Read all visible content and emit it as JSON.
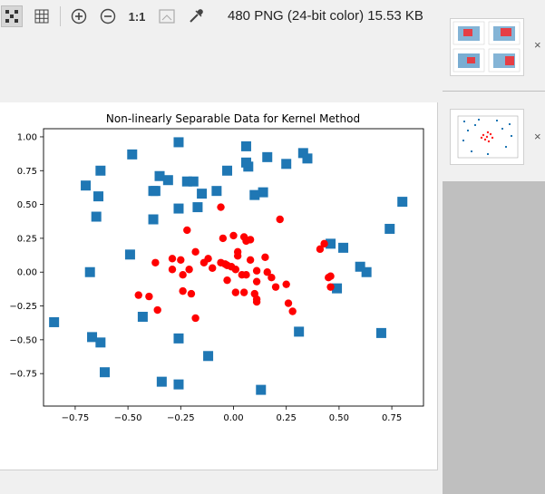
{
  "toolbar": {
    "image_info": "480 PNG (24-bit color) 15.53 KB",
    "zoom_label": "1:1"
  },
  "sidebar": {
    "close_glyph": "×"
  },
  "chart_data": {
    "type": "scatter",
    "title": "Non-linearly Separable Data for Kernel Method",
    "xlabel": "",
    "ylabel": "",
    "xlim": [
      -0.9,
      0.9
    ],
    "ylim": [
      -0.99,
      1.06
    ],
    "xticks": [
      -0.75,
      -0.5,
      -0.25,
      0.0,
      0.25,
      0.5,
      0.75
    ],
    "xtick_labels": [
      "−0.75",
      "−0.50",
      "−0.25",
      "0.00",
      "0.25",
      "0.50",
      "0.75"
    ],
    "yticks": [
      -0.75,
      -0.5,
      -0.25,
      0.0,
      0.25,
      0.5,
      0.75,
      1.0
    ],
    "ytick_labels": [
      "−0.75",
      "−0.50",
      "−0.25",
      "0.00",
      "0.25",
      "0.50",
      "0.75",
      "1.00"
    ],
    "grid": false,
    "series": [
      {
        "marker": "square",
        "color": "#1f77b4",
        "points": [
          [
            -0.26,
            0.96
          ],
          [
            0.06,
            0.93
          ],
          [
            -0.48,
            0.87
          ],
          [
            0.33,
            0.88
          ],
          [
            0.16,
            0.85
          ],
          [
            0.35,
            0.84
          ],
          [
            -0.63,
            0.75
          ],
          [
            0.07,
            0.78
          ],
          [
            0.06,
            0.81
          ],
          [
            -0.03,
            0.75
          ],
          [
            0.25,
            0.8
          ],
          [
            -0.35,
            0.71
          ],
          [
            -0.31,
            0.68
          ],
          [
            -0.22,
            0.67
          ],
          [
            -0.19,
            0.67
          ],
          [
            -0.7,
            0.64
          ],
          [
            -0.37,
            0.6
          ],
          [
            -0.38,
            0.6
          ],
          [
            -0.08,
            0.6
          ],
          [
            -0.15,
            0.58
          ],
          [
            0.14,
            0.59
          ],
          [
            0.1,
            0.57
          ],
          [
            -0.64,
            0.56
          ],
          [
            -0.17,
            0.48
          ],
          [
            -0.26,
            0.47
          ],
          [
            0.8,
            0.52
          ],
          [
            -0.65,
            0.41
          ],
          [
            -0.38,
            0.39
          ],
          [
            0.74,
            0.32
          ],
          [
            0.46,
            0.21
          ],
          [
            0.52,
            0.18
          ],
          [
            -0.49,
            0.13
          ],
          [
            -0.68,
            0.0
          ],
          [
            0.6,
            0.04
          ],
          [
            0.63,
            0.0
          ],
          [
            0.49,
            -0.12
          ],
          [
            -0.43,
            -0.33
          ],
          [
            0.31,
            -0.44
          ],
          [
            0.7,
            -0.45
          ],
          [
            -0.85,
            -0.37
          ],
          [
            -0.67,
            -0.48
          ],
          [
            -0.63,
            -0.52
          ],
          [
            -0.26,
            -0.49
          ],
          [
            -0.12,
            -0.62
          ],
          [
            -0.61,
            -0.74
          ],
          [
            -0.34,
            -0.81
          ],
          [
            -0.26,
            -0.83
          ],
          [
            0.13,
            -0.87
          ]
        ]
      },
      {
        "marker": "circle",
        "color": "#ff0000",
        "points": [
          [
            -0.06,
            0.48
          ],
          [
            0.22,
            0.39
          ],
          [
            -0.22,
            0.31
          ],
          [
            0.0,
            0.27
          ],
          [
            0.05,
            0.26
          ],
          [
            -0.05,
            0.25
          ],
          [
            0.08,
            0.24
          ],
          [
            0.06,
            0.23
          ],
          [
            0.43,
            0.21
          ],
          [
            0.41,
            0.17
          ],
          [
            0.02,
            0.15
          ],
          [
            -0.18,
            0.15
          ],
          [
            0.02,
            0.12
          ],
          [
            0.15,
            0.11
          ],
          [
            -0.12,
            0.1
          ],
          [
            -0.29,
            0.1
          ],
          [
            -0.25,
            0.09
          ],
          [
            0.08,
            0.09
          ],
          [
            -0.37,
            0.07
          ],
          [
            -0.14,
            0.07
          ],
          [
            -0.06,
            0.07
          ],
          [
            -0.04,
            0.06
          ],
          [
            -0.03,
            0.05
          ],
          [
            -0.01,
            0.04
          ],
          [
            -0.29,
            0.02
          ],
          [
            0.01,
            0.02
          ],
          [
            -0.21,
            0.02
          ],
          [
            -0.1,
            0.03
          ],
          [
            0.11,
            0.01
          ],
          [
            0.16,
            0.0
          ],
          [
            -0.24,
            -0.02
          ],
          [
            0.04,
            -0.02
          ],
          [
            0.06,
            -0.02
          ],
          [
            0.18,
            -0.04
          ],
          [
            0.45,
            -0.04
          ],
          [
            -0.03,
            -0.06
          ],
          [
            0.46,
            -0.03
          ],
          [
            0.11,
            -0.07
          ],
          [
            0.25,
            -0.09
          ],
          [
            0.2,
            -0.11
          ],
          [
            0.46,
            -0.11
          ],
          [
            -0.24,
            -0.14
          ],
          [
            0.01,
            -0.15
          ],
          [
            0.05,
            -0.15
          ],
          [
            -0.2,
            -0.16
          ],
          [
            0.1,
            -0.16
          ],
          [
            -0.45,
            -0.17
          ],
          [
            -0.4,
            -0.18
          ],
          [
            0.11,
            -0.2
          ],
          [
            0.11,
            -0.22
          ],
          [
            0.26,
            -0.23
          ],
          [
            -0.36,
            -0.28
          ],
          [
            0.28,
            -0.29
          ],
          [
            -0.18,
            -0.34
          ]
        ]
      }
    ]
  }
}
